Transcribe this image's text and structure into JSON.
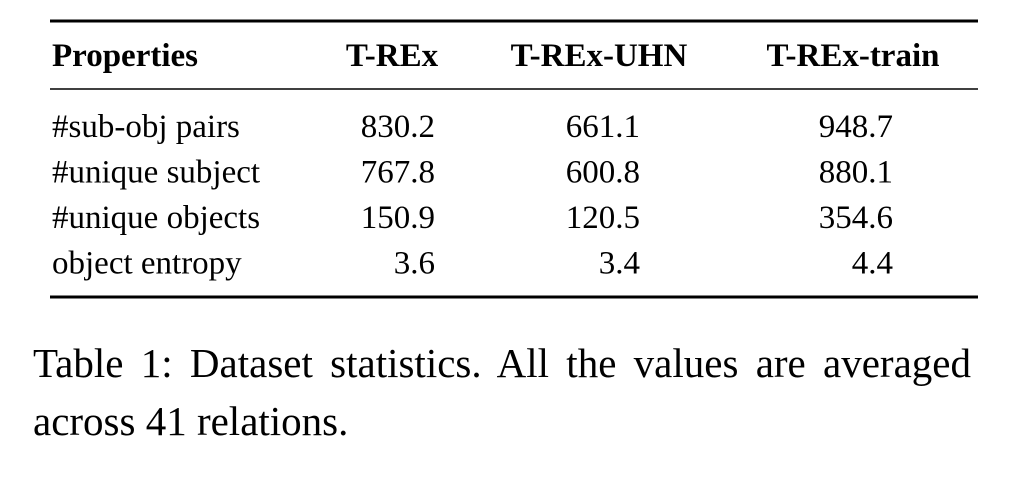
{
  "table": {
    "header": [
      "Properties",
      "T-REx",
      "T-REx-UHN",
      "T-REx-train"
    ],
    "rows": [
      [
        "#sub-obj pairs",
        830.2,
        661.1,
        948.7
      ],
      [
        "#unique subject",
        767.8,
        600.8,
        880.1
      ],
      [
        "#unique objects",
        150.9,
        120.5,
        354.6
      ],
      [
        "object entropy",
        3.6,
        3.4,
        4.4
      ]
    ]
  },
  "caption": "Table 1: Dataset statistics. All the values are averaged across 41 relations."
}
